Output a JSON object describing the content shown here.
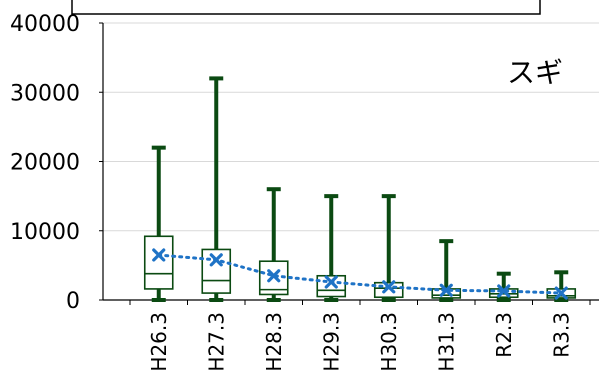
{
  "chart_data": {
    "type": "boxplot",
    "annotation": "スギ",
    "categories": [
      "H26.3",
      "H27.3",
      "H28.3",
      "H29.3",
      "H30.3",
      "H31.3",
      "R2.3",
      "R3.3"
    ],
    "ylim": [
      0,
      40000
    ],
    "yticks": [
      "0",
      "10000",
      "20000",
      "30000",
      "40000"
    ],
    "ytick_values": [
      0,
      10000,
      20000,
      30000,
      40000
    ],
    "grid": true,
    "legend": "top",
    "boxes": [
      {
        "category": "H26.3",
        "min": 0,
        "q1": 1600,
        "median": 3800,
        "q3": 9200,
        "max": 22000,
        "mean": 6500
      },
      {
        "category": "H27.3",
        "min": 0,
        "q1": 1000,
        "median": 2800,
        "q3": 7300,
        "max": 32000,
        "mean": 5800
      },
      {
        "category": "H28.3",
        "min": 0,
        "q1": 800,
        "median": 1500,
        "q3": 5600,
        "max": 16000,
        "mean": 3500
      },
      {
        "category": "H29.3",
        "min": 0,
        "q1": 500,
        "median": 1400,
        "q3": 3500,
        "max": 15000,
        "mean": 2600
      },
      {
        "category": "H30.3",
        "min": 0,
        "q1": 400,
        "median": 1700,
        "q3": 2500,
        "max": 15000,
        "mean": 1900
      },
      {
        "category": "H31.3",
        "min": 0,
        "q1": 300,
        "median": 700,
        "q3": 1600,
        "max": 8500,
        "mean": 1400
      },
      {
        "category": "R2.3",
        "min": 0,
        "q1": 400,
        "median": 900,
        "q3": 1600,
        "max": 3800,
        "mean": 1300
      },
      {
        "category": "R3.3",
        "min": 0,
        "q1": 300,
        "median": 600,
        "q3": 1600,
        "max": 4000,
        "mean": 1000
      }
    ],
    "colors": {
      "box": "#0b4a12",
      "mean_marker": "#1f73c6",
      "mean_line": "#1f73c6",
      "grid": "#d9d9d9",
      "axis": "#000000",
      "text": "#000000"
    }
  }
}
